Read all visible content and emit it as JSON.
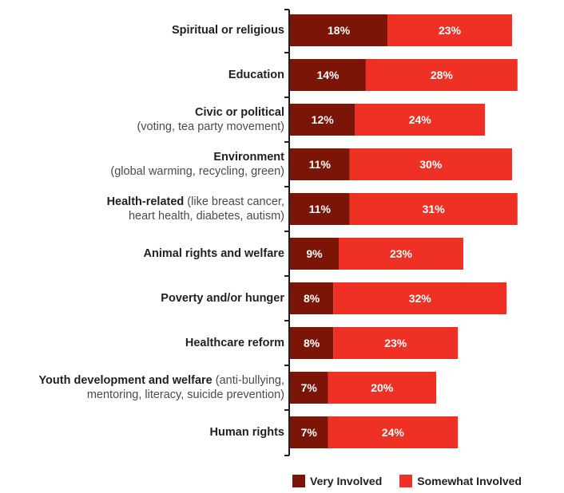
{
  "colors": {
    "very": "#7a1508",
    "somewhat": "#ee3124",
    "axis": "#231f20",
    "label_text": "#ffffff"
  },
  "legend": {
    "very_label": "Very Involved",
    "somewhat_label": "Somewhat Involved"
  },
  "chart_data": {
    "type": "bar",
    "orientation": "horizontal",
    "stacked": true,
    "categories": [
      "Spiritual or religious",
      "Education",
      "Civic or political (voting, tea party movement)",
      "Environment (global warming, recycling, green)",
      "Health-related (like breast cancer, heart health, diabetes, autism)",
      "Animal rights and welfare",
      "Poverty and/or hunger",
      "Healthcare reform",
      "Youth development and welfare (anti-bullying, mentoring, literacy, suicide prevention)",
      "Human rights"
    ],
    "category_display": [
      {
        "bold": [
          "Spiritual or religious"
        ],
        "rest": [
          ""
        ]
      },
      {
        "bold": [
          "Education"
        ],
        "rest": [
          ""
        ]
      },
      {
        "bold": [
          "Civic or political"
        ],
        "rest": [
          "(voting, tea party movement)"
        ]
      },
      {
        "bold": [
          "Environment"
        ],
        "rest": [
          "(global warming, recycling, green)"
        ]
      },
      {
        "bold": [
          "Health-related"
        ],
        "rest": [
          " (like breast cancer,",
          "heart health, diabetes, autism)"
        ]
      },
      {
        "bold": [
          "Animal rights and welfare"
        ],
        "rest": [
          ""
        ]
      },
      {
        "bold": [
          "Poverty and/or hunger"
        ],
        "rest": [
          ""
        ]
      },
      {
        "bold": [
          "Healthcare reform"
        ],
        "rest": [
          ""
        ]
      },
      {
        "bold": [
          "Youth development and welfare"
        ],
        "rest": [
          " (anti-bullying,",
          "mentoring, literacy, suicide prevention)"
        ]
      },
      {
        "bold": [
          "Human rights"
        ],
        "rest": [
          ""
        ]
      }
    ],
    "series": [
      {
        "name": "Very Involved",
        "values": [
          18,
          14,
          12,
          11,
          11,
          9,
          8,
          8,
          7,
          7
        ]
      },
      {
        "name": "Somewhat Involved",
        "values": [
          23,
          28,
          24,
          30,
          31,
          23,
          32,
          23,
          20,
          24
        ]
      }
    ],
    "value_suffix": "%",
    "xlim": [
      0,
      41
    ],
    "legend_position": "bottom-right",
    "grid": false
  }
}
